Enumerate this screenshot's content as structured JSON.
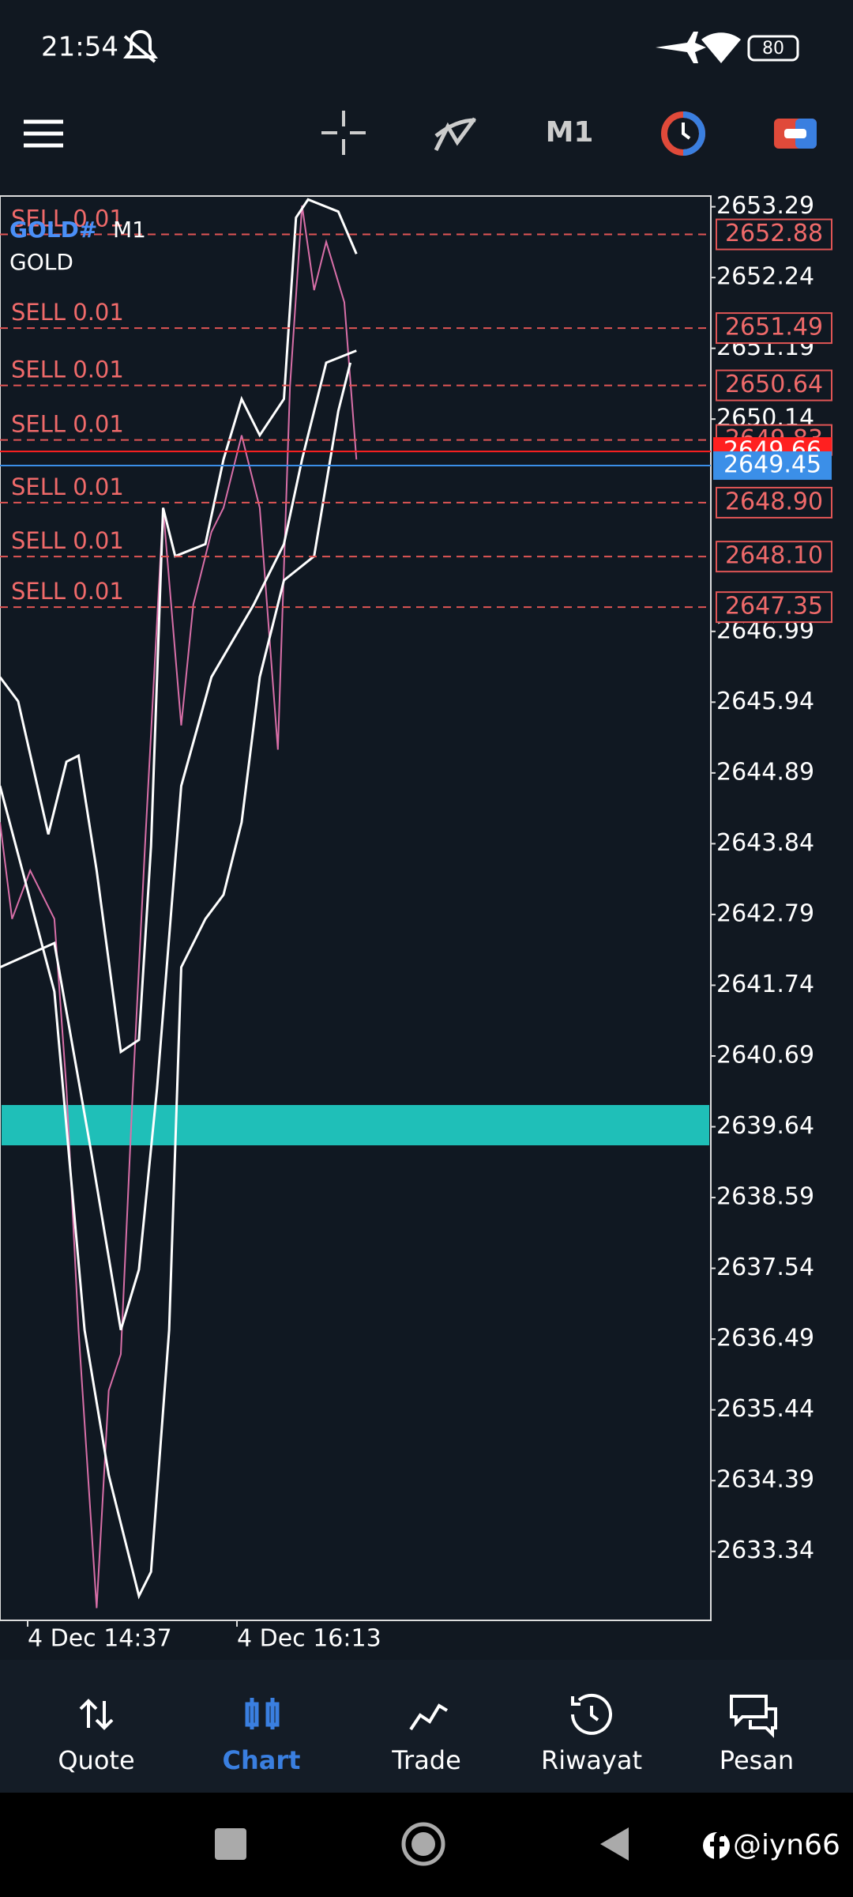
{
  "status_bar": {
    "time": "21:54",
    "battery": "80"
  },
  "toolbar": {
    "timeframe": "M1"
  },
  "chart": {
    "symbol": "GOLD#",
    "timeframe": "M1",
    "description": "GOLD",
    "price_ticks": [
      2653.29,
      2652.24,
      2651.19,
      2650.14,
      2646.99,
      2645.94,
      2644.89,
      2643.84,
      2642.79,
      2641.74,
      2640.69,
      2639.64,
      2638.59,
      2637.54,
      2636.49,
      2635.44,
      2634.39,
      2633.34
    ],
    "orders": [
      {
        "label": "SELL 0.01",
        "price": 2652.88
      },
      {
        "label": "SELL 0.01",
        "price": 2651.49
      },
      {
        "label": "SELL 0.01",
        "price": 2650.64
      },
      {
        "label": "SELL 0.01",
        "price": 2649.83
      },
      {
        "label": "SELL 0.01",
        "price": {
          "value": 2648.9,
          "label": "2648.90"
        }
      },
      {
        "label": "SELL 0.01",
        "price": {
          "value": 2648.1,
          "label": "2648.10"
        }
      },
      {
        "label": "SELL 0.01",
        "price": 2647.35
      }
    ],
    "ask": 2649.66,
    "bid": 2649.45,
    "time_labels": [
      "4 Dec 14:37",
      "4 Dec 16:13"
    ]
  },
  "nav": [
    {
      "label": "Quote"
    },
    {
      "label": "Chart"
    },
    {
      "label": "Trade"
    },
    {
      "label": "Riwayat"
    },
    {
      "label": "Pesan"
    }
  ],
  "watermark": "@iyn66"
}
